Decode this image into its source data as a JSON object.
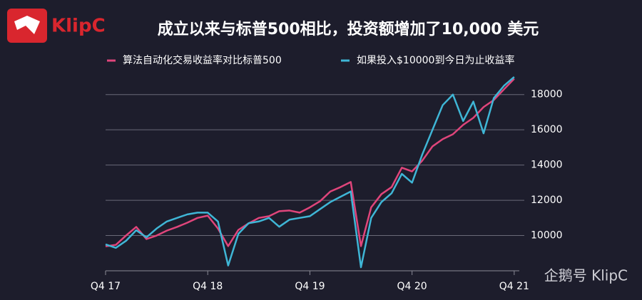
{
  "logo": "KlipC",
  "watermark": "企鹅号 KlipC",
  "chart_data": {
    "type": "line",
    "title": "成立以来与标普500相比，投资额增加了10,000 美元",
    "x": [
      0,
      0.1,
      0.2,
      0.3,
      0.4,
      0.5,
      0.6,
      0.7,
      0.8,
      0.9,
      1.0,
      1.1,
      1.2,
      1.3,
      1.4,
      1.5,
      1.6,
      1.7,
      1.8,
      1.9,
      2.0,
      2.1,
      2.2,
      2.3,
      2.4,
      2.5,
      2.6,
      2.7,
      2.8,
      2.9,
      3.0,
      3.1,
      3.2,
      3.3,
      3.4,
      3.5,
      3.6,
      3.7,
      3.8,
      3.9,
      4.0
    ],
    "series": [
      {
        "name": "算法自动化交易收益率对比标普500",
        "color": "#e0457b",
        "values": [
          9390,
          9470,
          10000,
          10490,
          9800,
          10000,
          10280,
          10490,
          10730,
          11000,
          11130,
          10400,
          9400,
          10320,
          10690,
          11000,
          11100,
          11380,
          11420,
          11300,
          11600,
          11950,
          12500,
          12750,
          13040,
          9400,
          11600,
          12350,
          12750,
          13850,
          13640,
          14250,
          15060,
          15470,
          15750,
          16280,
          16680,
          17290,
          17690,
          18300,
          18900
        ]
      },
      {
        "name": "如果投入$10000到今日为止收益率",
        "color": "#3fb6d6",
        "values": [
          9500,
          9300,
          9700,
          10300,
          9900,
          10400,
          10800,
          11000,
          11200,
          11300,
          11300,
          10800,
          8300,
          10100,
          10700,
          10800,
          11000,
          10500,
          10900,
          11000,
          11100,
          11500,
          11900,
          12200,
          12500,
          8200,
          11000,
          11900,
          12400,
          13500,
          13000,
          14600,
          16000,
          17400,
          18000,
          16500,
          17600,
          15800,
          17800,
          18500,
          19000
        ]
      }
    ],
    "xlim": [
      0,
      4.05
    ],
    "xticks": [
      {
        "value": 0,
        "label": "Q4 17"
      },
      {
        "value": 1,
        "label": "Q4 18"
      },
      {
        "value": 2,
        "label": "Q4 19"
      },
      {
        "value": 3,
        "label": "Q4 20"
      },
      {
        "value": 4,
        "label": "Q4 21"
      }
    ],
    "ylim": [
      8000,
      19000
    ],
    "yticks": [
      10000,
      12000,
      14000,
      16000,
      18000
    ],
    "grid": true
  }
}
